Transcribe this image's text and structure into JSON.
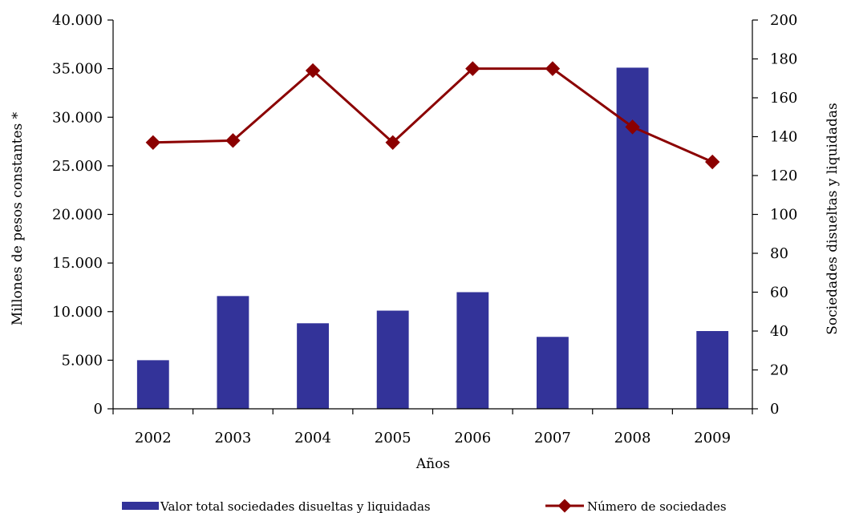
{
  "chart_data": {
    "type": "bar",
    "categories": [
      "2002",
      "2003",
      "2004",
      "2005",
      "2006",
      "2007",
      "2008",
      "2009"
    ],
    "series": [
      {
        "name": "Valor total sociedades disueltas y liquidadas",
        "type": "bar",
        "axis": "left",
        "color": "#333399",
        "values": [
          5000,
          11600,
          8800,
          10100,
          12000,
          7400,
          35100,
          8000
        ]
      },
      {
        "name": "Número de sociedades",
        "type": "line",
        "axis": "right",
        "color": "#8B0000",
        "values": [
          137,
          138,
          174,
          137,
          175,
          175,
          145,
          127
        ]
      }
    ],
    "xlabel": "Años",
    "ylabel": "Millones de pesos constantes *",
    "ylabel_right": "Sociedades disueltas y liquidadas",
    "ylim": [
      0,
      40000
    ],
    "ylim_right": [
      0,
      200
    ],
    "yticks": [
      "0",
      "5.000",
      "10.000",
      "15.000",
      "20.000",
      "25.000",
      "30.000",
      "35.000",
      "40.000"
    ],
    "yticks_right": [
      "0",
      "20",
      "40",
      "60",
      "80",
      "100",
      "120",
      "140",
      "160",
      "180",
      "200"
    ],
    "grid": false,
    "legend_position": "bottom"
  }
}
